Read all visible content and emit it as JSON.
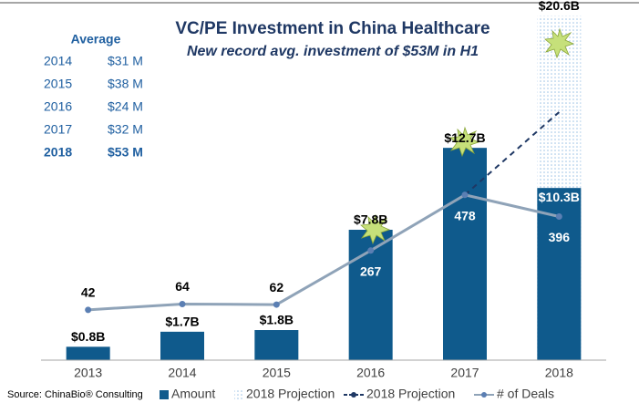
{
  "chart_data": {
    "type": "bar_line",
    "title": "VC/PE Investment in China Healthcare",
    "subtitle": "New record avg. investment of $53M in H1",
    "source": "Source: ChinaBio® Consulting",
    "categories": [
      "2013",
      "2014",
      "2015",
      "2016",
      "2017",
      "2018"
    ],
    "ylim": [
      0,
      21
    ],
    "y2lim": [
      0,
      1200
    ],
    "series": [
      {
        "name": "2018 Projection",
        "kind": "bar",
        "pattern": "dotted",
        "color": "#9dc3e6",
        "values": [
          null,
          null,
          null,
          null,
          null,
          20.6
        ],
        "value_labels": [
          null,
          null,
          null,
          null,
          null,
          "$20.6B"
        ]
      },
      {
        "name": "Amount",
        "kind": "bar",
        "color": "#0f5a8c",
        "values": [
          0.8,
          1.7,
          1.8,
          7.8,
          12.7,
          10.3
        ],
        "value_labels": [
          "$0.8B",
          "$1.7B",
          "$1.8B",
          "$7.8B",
          "$12.7B",
          "$10.3B"
        ]
      },
      {
        "name": "2018 Projection",
        "kind": "line",
        "dashed": true,
        "axis": "y2",
        "color": "#1f3864",
        "values": [
          null,
          null,
          null,
          null,
          478,
          792
        ]
      },
      {
        "name": "# of Deals",
        "kind": "line",
        "axis": "y2",
        "color": "#8fa3b8",
        "marker_color": "#5b7fb3",
        "values": [
          42,
          64,
          62,
          267,
          478,
          396
        ]
      }
    ],
    "average_table": {
      "title": "Average",
      "rows": [
        [
          "2014",
          "$31 M"
        ],
        [
          "2015",
          "$38 M"
        ],
        [
          "2016",
          "$24 M"
        ],
        [
          "2017",
          "$32 M"
        ],
        [
          "2018",
          "$53 M"
        ]
      ]
    }
  }
}
